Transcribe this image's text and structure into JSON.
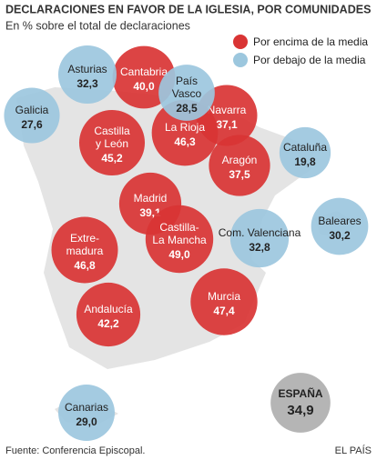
{
  "chart_data": {
    "type": "bubble",
    "title": "DECLARACIONES EN FAVOR DE LA IGLESIA, POR COMUNIDADES",
    "subtitle": "En % sobre el total de declaraciones",
    "series": [
      {
        "name": "Por encima de la media",
        "color": "#d93434",
        "categories": [
          [
            "Cantabria"
          ],
          [
            "Navarra"
          ],
          [
            "Castilla",
            "y León"
          ],
          [
            "La Rioja"
          ],
          [
            "Aragón"
          ],
          [
            "Madrid"
          ],
          [
            "Extre-",
            "madura"
          ],
          [
            "Castilla-",
            "La Mancha"
          ],
          [
            "Andalucía"
          ],
          [
            "Murcia"
          ]
        ],
        "values": [
          40.0,
          37.1,
          45.2,
          46.3,
          37.5,
          39.1,
          46.8,
          49.0,
          42.2,
          47.4
        ],
        "value_labels": [
          "40,0",
          "37,1",
          "45,2",
          "46,3",
          "37,5",
          "39,1",
          "46,8",
          "49,0",
          "42,2",
          "47,4"
        ]
      },
      {
        "name": "Por debajo de la media",
        "color": "#9cc7de",
        "categories": [
          [
            "Asturias"
          ],
          [
            "País",
            "Vasco"
          ],
          [
            "Galicia"
          ],
          [
            "Cataluña"
          ],
          [
            "Com. Valenciana"
          ],
          [
            "Baleares"
          ],
          [
            "Canarias"
          ]
        ],
        "values": [
          32.3,
          28.5,
          27.6,
          19.8,
          32.8,
          30.2,
          29.0
        ],
        "value_labels": [
          "32,3",
          "28,5",
          "27,6",
          "19,8",
          "32,8",
          "30,2",
          "29,0"
        ]
      }
    ],
    "total": {
      "name": "ESPAÑA",
      "value": 34.9,
      "value_label": "34,9",
      "color": "#b5b5b5"
    },
    "source": "Fuente: Conferencia Episcopal.",
    "credit": "EL PAÍS"
  }
}
